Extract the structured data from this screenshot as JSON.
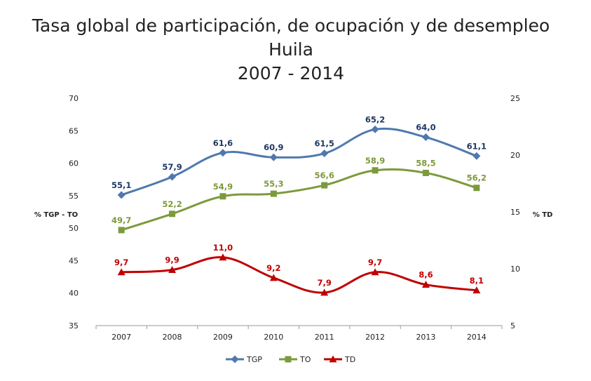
{
  "chart_data": {
    "type": "line",
    "title": "Tasa global de participación, de ocupación y de desempleo",
    "subtitle": [
      "Huila",
      "2007 - 2014"
    ],
    "ylabel_left": "% TGP - TO",
    "ylabel_right": "% TD",
    "categories": [
      "2007",
      "2008",
      "2009",
      "2010",
      "2011",
      "2012",
      "2013",
      "2014"
    ],
    "ylim_left": [
      35,
      70
    ],
    "yticks_left": [
      "35",
      "40",
      "45",
      "50",
      "55",
      "60",
      "65",
      "70"
    ],
    "ylim_right": [
      5,
      25
    ],
    "yticks_right": [
      "5",
      "10",
      "15",
      "20",
      "25"
    ],
    "grid": false,
    "legend_position": "bottom",
    "series": [
      {
        "name": "TGP",
        "axis": "left",
        "marker": "diamond",
        "color": "#4F79AE",
        "label_color": "#1F3864",
        "values": [
          55.1,
          57.9,
          61.6,
          60.9,
          61.5,
          65.2,
          64.0,
          61.1
        ],
        "labels": [
          "55,1",
          "57,9",
          "61,6",
          "60,9",
          "61,5",
          "65,2",
          "64,0",
          "61,1"
        ]
      },
      {
        "name": "TO",
        "axis": "left",
        "marker": "square",
        "color": "#7C9A3C",
        "label_color": "#7C9A3C",
        "values": [
          49.7,
          52.2,
          54.9,
          55.3,
          56.6,
          58.9,
          58.5,
          56.2
        ],
        "labels": [
          "49,7",
          "52,2",
          "54,9",
          "55,3",
          "56,6",
          "58,9",
          "58,5",
          "56,2"
        ]
      },
      {
        "name": "TD",
        "axis": "right",
        "marker": "triangle",
        "color": "#C00000",
        "label_color": "#C00000",
        "values": [
          9.7,
          9.9,
          11.0,
          9.2,
          7.9,
          9.7,
          8.6,
          8.1
        ],
        "labels": [
          "9,7",
          "9,9",
          "11,0",
          "9,2",
          "7,9",
          "9,7",
          "8,6",
          "8,1"
        ]
      }
    ]
  }
}
